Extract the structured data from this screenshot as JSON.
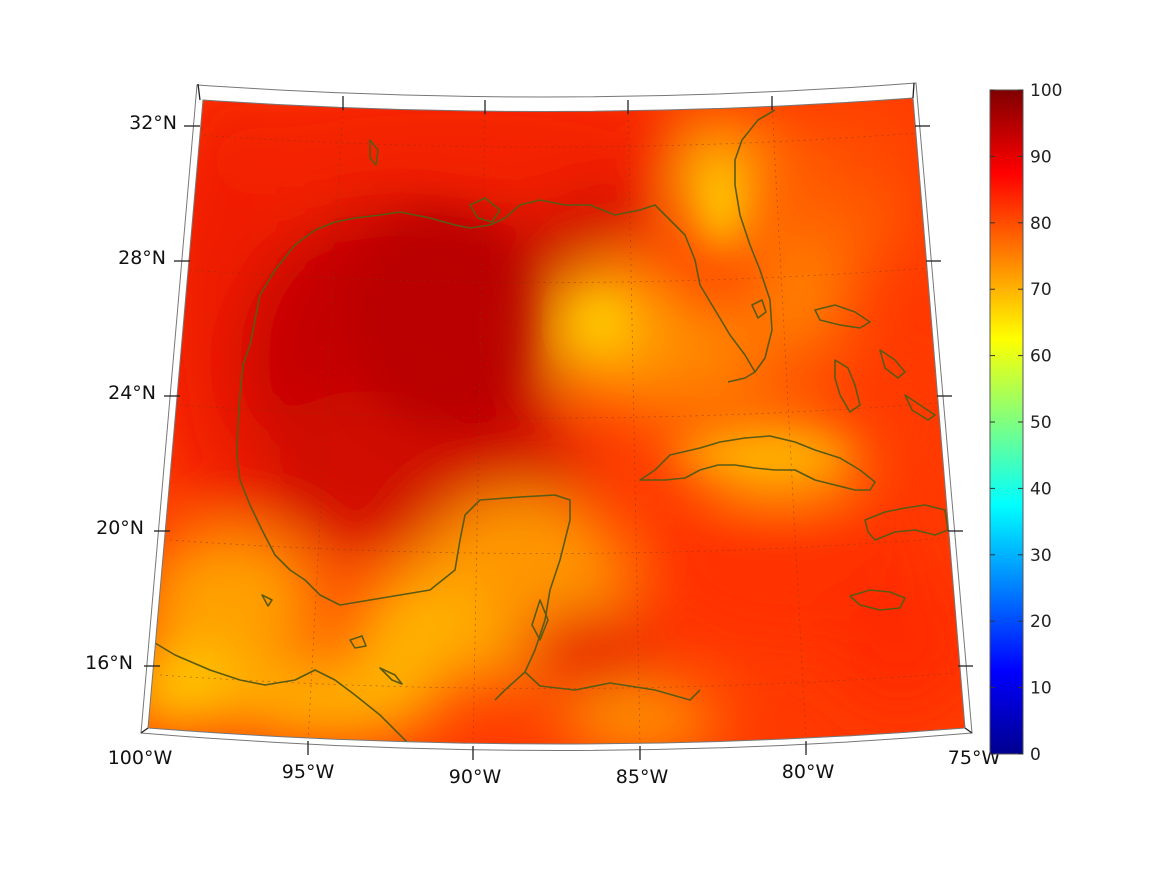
{
  "map": {
    "projection": "lambert-conformal",
    "extent": {
      "lon": [
        -100,
        -75
      ],
      "lat": [
        14,
        33
      ]
    },
    "lat_labels": [
      "32°N",
      "28°N",
      "24°N",
      "20°N",
      "16°N"
    ],
    "lon_labels": [
      "100°W",
      "95°W",
      "90°W",
      "85°W",
      "80°W",
      "75°W"
    ],
    "gridlines": "dotted",
    "coastline_color": "#5a5a14"
  },
  "colorbar": {
    "colormap": "jet",
    "range": [
      0,
      100
    ],
    "tick_labels": [
      "100",
      "90",
      "80",
      "70",
      "60",
      "50",
      "40",
      "30",
      "20",
      "10",
      "0"
    ]
  },
  "field": {
    "description_palette": [
      "#c50000",
      "#e81a00",
      "#ff4a00",
      "#ff8000",
      "#ffb000",
      "#ffd400"
    ]
  }
}
